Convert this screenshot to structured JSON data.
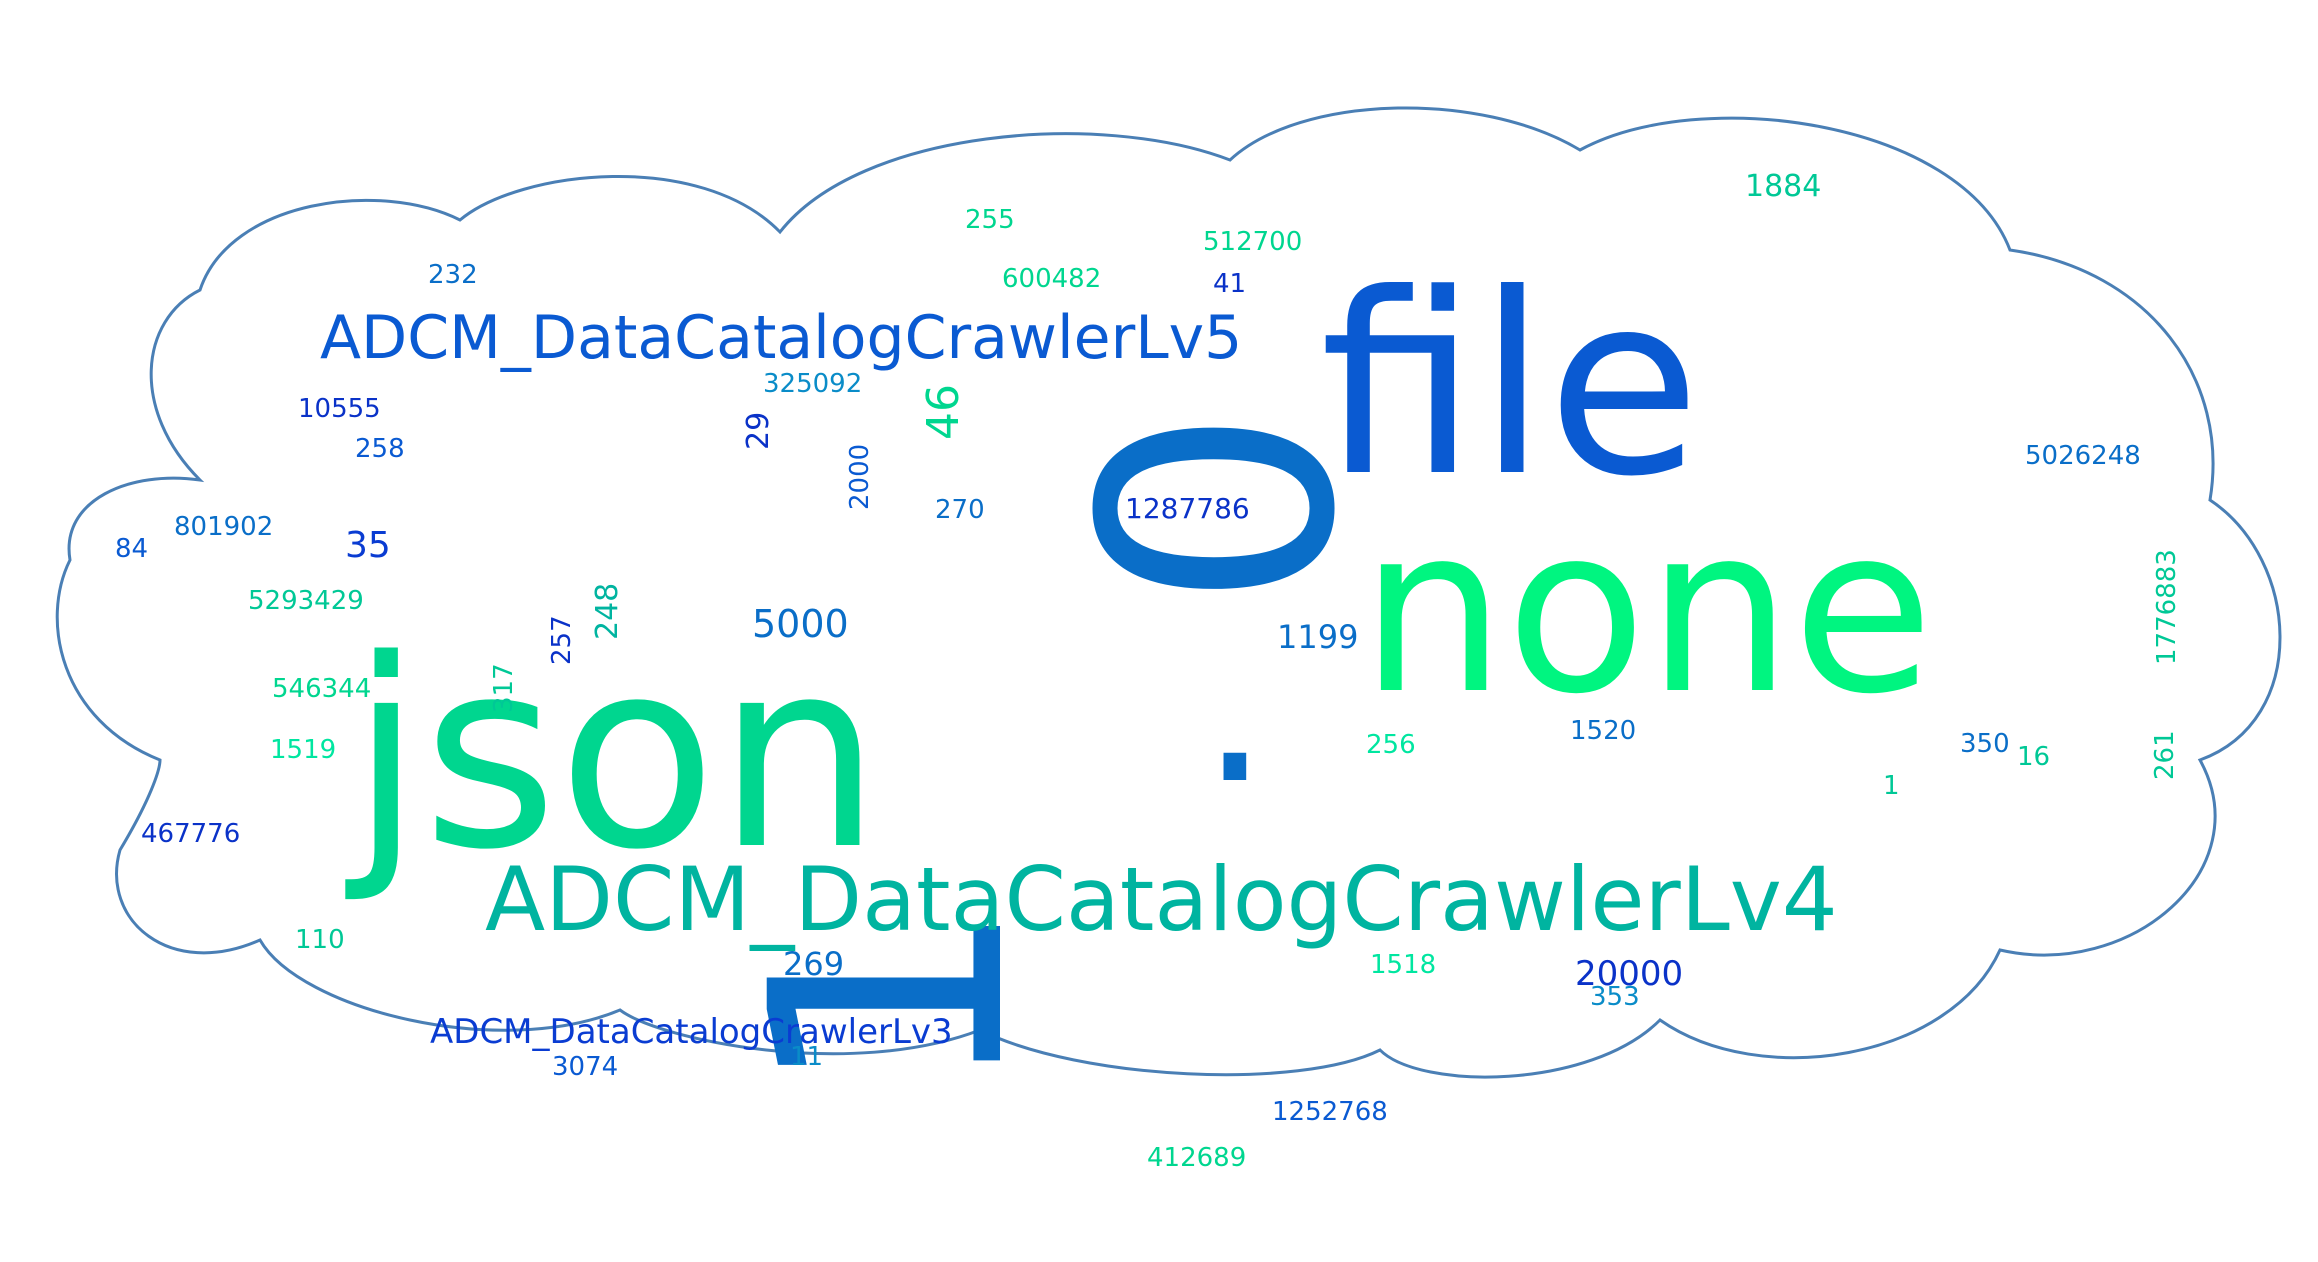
{
  "cloud_outline_color": "#4a7fb5",
  "words": [
    {
      "text": "file",
      "color": "#0a5ad2"
    },
    {
      "text": "none",
      "color": "#00f580"
    },
    {
      "text": "json",
      "color": "#00d68f"
    },
    {
      "text": "0",
      "color": "#0a6ec8"
    },
    {
      "text": ".",
      "color": "#0a6ec8"
    },
    {
      "text": "1",
      "color": "#0a6ec8"
    },
    {
      "text": "ADCM_DataCatalogCrawlerLv4",
      "color": "#00b4a0"
    },
    {
      "text": "ADCM_DataCatalogCrawlerLv5",
      "color": "#0a5ad2"
    },
    {
      "text": "ADCM_DataCatalogCrawlerLv3",
      "color": "#0a3cd2"
    },
    {
      "text": "1884",
      "color": "#00c896"
    },
    {
      "text": "255",
      "color": "#00d68f"
    },
    {
      "text": "512700",
      "color": "#00d68f"
    },
    {
      "text": "232",
      "color": "#0a6ec8"
    },
    {
      "text": "600482",
      "color": "#00d68f"
    },
    {
      "text": "41",
      "color": "#0a32c8"
    },
    {
      "text": "325092",
      "color": "#0a8cc8"
    },
    {
      "text": "10555",
      "color": "#0a32c8"
    },
    {
      "text": "46",
      "color": "#00d68f"
    },
    {
      "text": "29",
      "color": "#0a32c8"
    },
    {
      "text": "258",
      "color": "#0a5ad2"
    },
    {
      "text": "2000",
      "color": "#0a5ad2"
    },
    {
      "text": "270",
      "color": "#0a6ec8"
    },
    {
      "text": "1287786",
      "color": "#0a32c8"
    },
    {
      "text": "5026248",
      "color": "#0a6ec8"
    },
    {
      "text": "801902",
      "color": "#0a6ec8"
    },
    {
      "text": "84",
      "color": "#0a5ad2"
    },
    {
      "text": "35",
      "color": "#0a3cd2"
    },
    {
      "text": "5293429",
      "color": "#00c896"
    },
    {
      "text": "248",
      "color": "#00b4a0"
    },
    {
      "text": "257",
      "color": "#0a32c8"
    },
    {
      "text": "5000",
      "color": "#0a6ec8"
    },
    {
      "text": "1199",
      "color": "#0a6ec8"
    },
    {
      "text": "1776883",
      "color": "#00c896"
    },
    {
      "text": "317",
      "color": "#00c896"
    },
    {
      "text": "546344",
      "color": "#00d68f"
    },
    {
      "text": "256",
      "color": "#00e6a0"
    },
    {
      "text": "1520",
      "color": "#0a6ec8"
    },
    {
      "text": "350",
      "color": "#0a6ec8"
    },
    {
      "text": "16",
      "color": "#00c896"
    },
    {
      "text": "261",
      "color": "#00c896"
    },
    {
      "text": "1519",
      "color": "#00e6a0"
    },
    {
      "text": "1",
      "color": "#00c896"
    },
    {
      "text": "467776",
      "color": "#0a32c8"
    },
    {
      "text": "110",
      "color": "#00c896"
    },
    {
      "text": "269",
      "color": "#0a6ec8"
    },
    {
      "text": "1518",
      "color": "#00e6a0"
    },
    {
      "text": "20000",
      "color": "#0a32c8"
    },
    {
      "text": "353",
      "color": "#0a8cc8"
    },
    {
      "text": "3074",
      "color": "#0a5ad2"
    },
    {
      "text": "11",
      "color": "#0a8cc8"
    },
    {
      "text": "1252768",
      "color": "#0a5ad2"
    },
    {
      "text": "412689",
      "color": "#00d68f"
    }
  ]
}
